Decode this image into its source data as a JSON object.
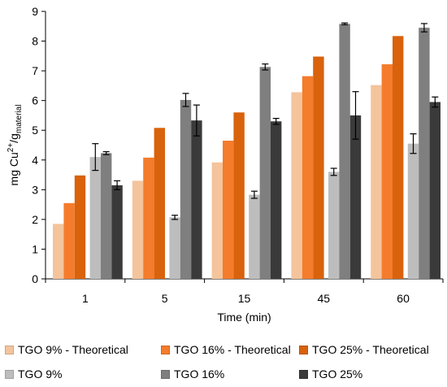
{
  "chart_data": {
    "type": "bar",
    "title": "",
    "xlabel": "Time (min)",
    "ylabel_main": "mg Cu",
    "ylabel_sup": "2+",
    "ylabel_sep": "/g",
    "ylabel_sub": "material",
    "ylim": [
      0,
      9
    ],
    "yticks": [
      "0",
      "1",
      "2",
      "3",
      "4",
      "5",
      "6",
      "7",
      "8",
      "9"
    ],
    "categories": [
      "1",
      "5",
      "15",
      "45",
      "60"
    ],
    "legend_position": "bottom",
    "series": [
      {
        "name": "TGO 9% - Theoretical",
        "color": "#f4c49c",
        "values": [
          1.85,
          3.3,
          3.92,
          6.28,
          6.52
        ],
        "errors": null
      },
      {
        "name": "TGO 16% - Theoretical",
        "color": "#f47c2c",
        "values": [
          2.55,
          4.08,
          4.65,
          6.82,
          7.22
        ],
        "errors": null
      },
      {
        "name": "TGO 25% - Theoretical",
        "color": "#d9620c",
        "values": [
          3.48,
          5.08,
          5.6,
          7.48,
          8.17
        ],
        "errors": null
      },
      {
        "name": "TGO 9%",
        "color": "#bdbdbd",
        "values": [
          4.1,
          2.07,
          2.83,
          3.6,
          4.55
        ],
        "errors": [
          0.45,
          0.07,
          0.12,
          0.12,
          0.33
        ]
      },
      {
        "name": "TGO 16%",
        "color": "#7f7f7f",
        "values": [
          4.23,
          6.02,
          7.13,
          8.58,
          8.45
        ],
        "errors": [
          0.05,
          0.22,
          0.1,
          0.03,
          0.14
        ]
      },
      {
        "name": "TGO 25%",
        "color": "#3a3a3a",
        "values": [
          3.15,
          5.33,
          5.3,
          5.5,
          5.95
        ],
        "errors": [
          0.15,
          0.52,
          0.1,
          0.8,
          0.17
        ]
      }
    ]
  }
}
